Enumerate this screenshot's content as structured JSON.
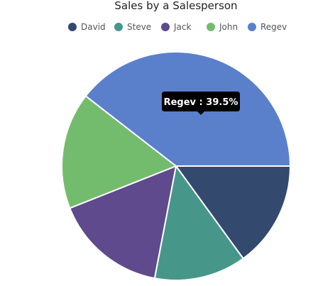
{
  "chart_data": {
    "type": "pie",
    "title": "Sales by a Salesperson",
    "series": [
      {
        "name": "David",
        "value": 15.0,
        "color": "#34496E"
      },
      {
        "name": "Steve",
        "value": 13.0,
        "color": "#46978A"
      },
      {
        "name": "Jack",
        "value": 16.0,
        "color": "#5E4A8D"
      },
      {
        "name": "John",
        "value": 16.5,
        "color": "#74BC6D"
      },
      {
        "name": "Regev",
        "value": 39.5,
        "color": "#5A80CC"
      }
    ],
    "legend_position": "top",
    "start_angle_direction": "clockwise from 3 o'clock",
    "tooltip": {
      "series": "Regev",
      "label": "Regev",
      "separator": ":",
      "value_text": "39.5%"
    }
  }
}
